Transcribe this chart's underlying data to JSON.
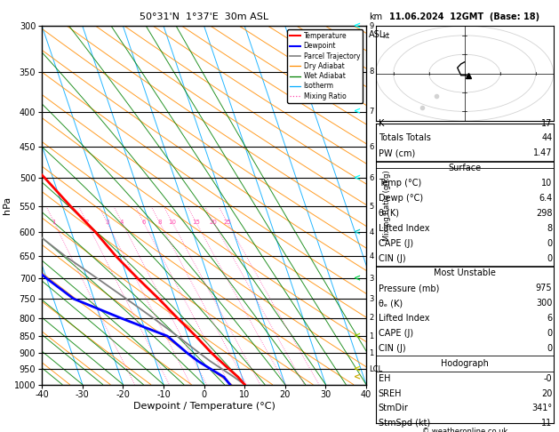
{
  "title_left": "50°31'N  1°37'E  30m ASL",
  "title_right": "11.06.2024  12GMT  (Base: 18)",
  "xlabel": "Dewpoint / Temperature (°C)",
  "ylabel_left": "hPa",
  "pressure_levels": [
    300,
    350,
    400,
    450,
    500,
    550,
    600,
    650,
    700,
    750,
    800,
    850,
    900,
    950,
    1000
  ],
  "temp_color": "#ff0000",
  "dewp_color": "#0000ff",
  "parcel_color": "#808080",
  "dry_adiabat_color": "#ff8c00",
  "wet_adiabat_color": "#008000",
  "isotherm_color": "#00aaff",
  "mixing_ratio_color": "#ff44aa",
  "background_color": "#ffffff",
  "xmin": -40,
  "xmax": 40,
  "pmin": 300,
  "pmax": 1000,
  "skew_factor": 1.0,
  "mixing_ratios": [
    1,
    2,
    3,
    4,
    6,
    8,
    10,
    15,
    20,
    25
  ],
  "info_K": 17,
  "info_TT": 44,
  "info_PW": "1.47",
  "sfc_temp": 10,
  "sfc_dewp": "6.4",
  "sfc_theta_e": 298,
  "sfc_LI": 8,
  "sfc_CAPE": 0,
  "sfc_CIN": 0,
  "mu_pressure": 975,
  "mu_theta_e": 300,
  "mu_LI": 6,
  "mu_CAPE": 0,
  "mu_CIN": 0,
  "hodo_EH": "-0",
  "hodo_SREH": 20,
  "hodo_StmDir": "341°",
  "hodo_StmSpd": 11,
  "km_labels": {
    "300": "9",
    "350": "8",
    "400": "7",
    "450": "6",
    "500": "6",
    "550": "5",
    "600": "4",
    "650": "4",
    "700": "3",
    "750": "3",
    "800": "2",
    "850": "1",
    "900": "1",
    "950": "LCL",
    "1000": ""
  },
  "wind_levels_p": [
    300,
    400,
    500,
    600,
    700,
    850,
    950,
    975
  ],
  "wind_colors": [
    "#00ffff",
    "#00ffff",
    "#00ffff",
    "#00cccc",
    "#00cc44",
    "#88cc00",
    "#cccc00",
    "#ccaa00"
  ]
}
